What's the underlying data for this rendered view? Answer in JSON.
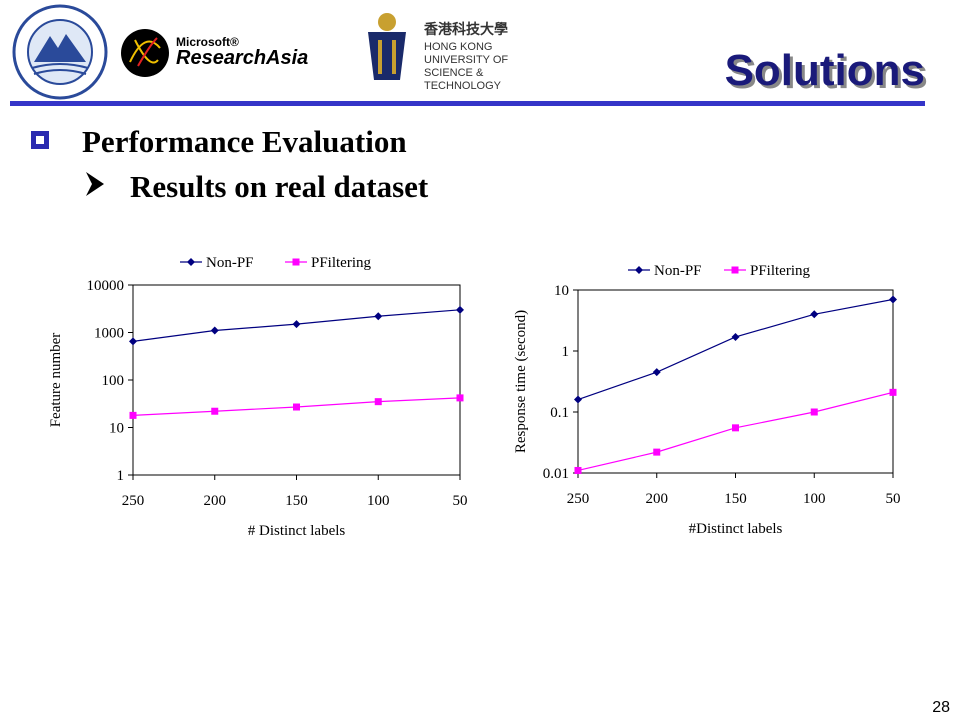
{
  "header": {
    "title": "Solutions",
    "logos": {
      "msra": [
        "Microsoft®",
        "ResearchAsia"
      ],
      "hkust": [
        "香港科技大學",
        "HONG KONG",
        "UNIVERSITY OF",
        "SCIENCE &",
        "TECHNOLOGY"
      ]
    }
  },
  "bullets": [
    "Performance Evaluation",
    "Results on real dataset"
  ],
  "page_number": "28",
  "chart_data": [
    {
      "type": "line",
      "categories": [
        "250",
        "200",
        "150",
        "100",
        "50"
      ],
      "x_label": "# Distinct labels",
      "y_label": "Feature number",
      "log_scale": true,
      "ylim": [
        1,
        10000
      ],
      "yticks": [
        1,
        10,
        100,
        1000,
        10000
      ],
      "legend": "top",
      "series": [
        {
          "name": "Non-PF",
          "color": "#000080",
          "marker": "diamond",
          "values": [
            650,
            1100,
            1500,
            2200,
            3000
          ]
        },
        {
          "name": "PFiltering",
          "color": "#ff00ff",
          "marker": "square",
          "values": [
            18,
            22,
            27,
            35,
            42
          ]
        }
      ]
    },
    {
      "type": "line",
      "categories": [
        "250",
        "200",
        "150",
        "100",
        "50"
      ],
      "x_label": "#Distinct labels",
      "y_label": "Response time (second)",
      "log_scale": true,
      "ylim": [
        0.01,
        10
      ],
      "yticks": [
        0.01,
        0.1,
        1,
        10
      ],
      "legend": "top",
      "series": [
        {
          "name": "Non-PF",
          "color": "#000080",
          "marker": "diamond",
          "values": [
            0.16,
            0.45,
            1.7,
            4,
            7
          ]
        },
        {
          "name": "PFiltering",
          "color": "#ff00ff",
          "marker": "square",
          "values": [
            0.011,
            0.022,
            0.055,
            0.1,
            0.21
          ]
        }
      ]
    }
  ]
}
